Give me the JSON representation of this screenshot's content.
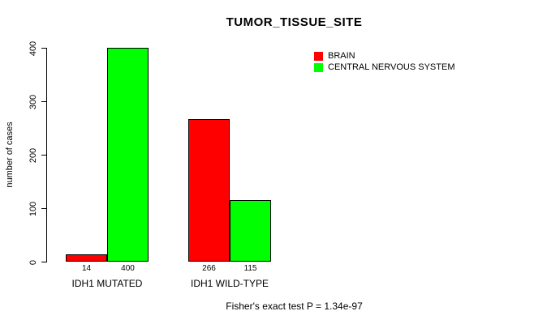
{
  "title": "TUMOR_TISSUE_SITE",
  "y_axis_label": "number of cases",
  "footer": "Fisher's exact test P = 1.34e-97",
  "legend": {
    "items": [
      {
        "label": "BRAIN",
        "color": "#ff0000",
        "icon": "red-square"
      },
      {
        "label": "CENTRAL NERVOUS SYSTEM",
        "color": "#00ff00",
        "icon": "green-square"
      }
    ]
  },
  "chart_data": {
    "type": "bar",
    "title": "TUMOR_TISSUE_SITE",
    "xlabel": "",
    "ylabel": "number of cases",
    "categories": [
      "IDH1 MUTATED",
      "IDH1 WILD-TYPE"
    ],
    "series": [
      {
        "name": "BRAIN",
        "color": "#ff0000",
        "values": [
          14,
          266
        ]
      },
      {
        "name": "CENTRAL NERVOUS SYSTEM",
        "color": "#00ff00",
        "values": [
          400,
          115
        ]
      }
    ],
    "bar_value_labels": [
      [
        "14",
        "400"
      ],
      [
        "266",
        "115"
      ]
    ],
    "ylim": [
      0,
      400
    ],
    "yticks": [
      0,
      100,
      200,
      300,
      400
    ],
    "grid": false,
    "legend_position": "top-right",
    "bar_border_color": "#000000",
    "background_color": "#ffffff",
    "annotation": "Fisher's exact test P = 1.34e-97"
  }
}
